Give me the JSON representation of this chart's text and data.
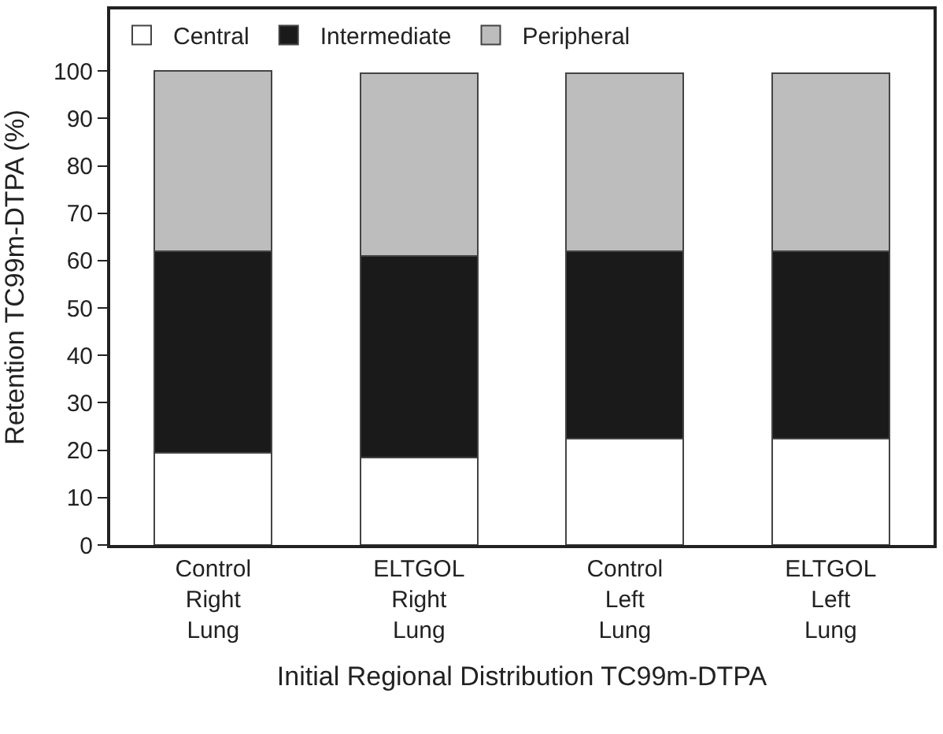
{
  "chart_data": {
    "type": "bar",
    "stacked": true,
    "categories": [
      "Control\nRight\nLung",
      "ELTGOL\nRight\nLung",
      "Control\nLeft\nLung",
      "ELTGOL\nLeft\nLung"
    ],
    "series": [
      {
        "name": "Central",
        "color": "#ffffff",
        "values": [
          19.5,
          18.5,
          22.5,
          22.5
        ]
      },
      {
        "name": "Intermediate",
        "color": "#1a1a1a",
        "values": [
          42.5,
          42.5,
          39.5,
          39.5
        ]
      },
      {
        "name": "Peripheral",
        "color": "#bdbdbd",
        "values": [
          38,
          38.5,
          37.5,
          37.5
        ]
      }
    ],
    "xlabel": "Initial Regional Distribution TC99m-DTPA",
    "ylabel": "Retention TC99m-DTPA (%)",
    "ylim": [
      0,
      113
    ],
    "yticks": [
      0,
      10,
      20,
      30,
      40,
      50,
      60,
      70,
      80,
      90,
      100
    ],
    "legend": "top left"
  }
}
